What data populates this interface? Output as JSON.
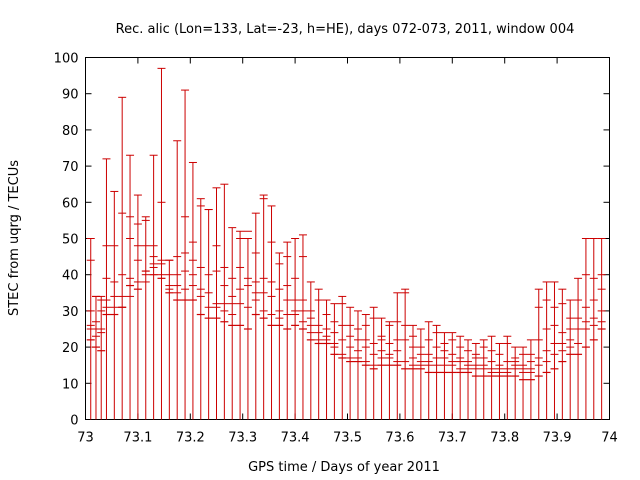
{
  "chart_data": {
    "type": "scatter",
    "style": "error-bars",
    "title": "Rec. alic (Lon=133, Lat=-23, h=HE), days 072-073, 2011, window 004",
    "xlabel": "GPS time / Days of year 2011",
    "ylabel": "STEC from uqrg / TECUs",
    "xlim": [
      73,
      74
    ],
    "ylim": [
      0,
      100
    ],
    "x_ticks": [
      "73",
      "73.1",
      "73.2",
      "73.3",
      "73.4",
      "73.5",
      "73.6",
      "73.7",
      "73.8",
      "73.9",
      "74"
    ],
    "y_ticks": [
      "0",
      "10",
      "20",
      "30",
      "40",
      "50",
      "60",
      "70",
      "80",
      "90",
      "100"
    ],
    "grid": false,
    "legend": "none",
    "color": "#cc0000",
    "series": [
      {
        "x": [
          73.01,
          73.02,
          73.03,
          73.04,
          73.055,
          73.07,
          73.085,
          73.1,
          73.115,
          73.13,
          73.145,
          73.16,
          73.175,
          73.19,
          73.205,
          73.22,
          73.235,
          73.25,
          73.265,
          73.28,
          73.295,
          73.31,
          73.325,
          73.34,
          73.355,
          73.37,
          73.385,
          73.4,
          73.415,
          73.43,
          73.445,
          73.46,
          73.475,
          73.49,
          73.505,
          73.52,
          73.535,
          73.55,
          73.565,
          73.58,
          73.595,
          73.61,
          73.625,
          73.64,
          73.655,
          73.67,
          73.685,
          73.7,
          73.715,
          73.73,
          73.745,
          73.76,
          73.775,
          73.79,
          73.805,
          73.82,
          73.835,
          73.85,
          73.865,
          73.88,
          73.895,
          73.91,
          73.925,
          73.94,
          73.955,
          73.97,
          73.985
        ],
        "y": [
          22,
          20,
          19,
          29,
          29,
          31,
          37,
          36,
          41,
          40,
          39,
          35,
          33,
          33,
          33,
          29,
          28,
          28,
          27,
          26,
          26,
          25,
          29,
          28,
          26,
          26,
          25,
          26,
          25,
          22,
          21,
          21,
          18,
          17,
          16,
          16,
          15,
          14,
          15,
          15,
          15,
          14,
          14,
          14,
          13,
          13,
          13,
          13,
          13,
          13,
          12,
          12,
          12,
          12,
          12,
          12,
          11,
          11,
          12,
          13,
          14,
          16,
          18,
          18,
          20,
          22,
          25
        ],
        "err_low": [
          0,
          0,
          0,
          0,
          0,
          0,
          0,
          0,
          0,
          0,
          0,
          0,
          0,
          0,
          0,
          0,
          0,
          0,
          0,
          0,
          0,
          0,
          0,
          0,
          0,
          0,
          0,
          0,
          0,
          0,
          0,
          0,
          0,
          0,
          0,
          0,
          0,
          0,
          0,
          0,
          0,
          0,
          0,
          0,
          0,
          0,
          0,
          0,
          0,
          0,
          0,
          0,
          0,
          0,
          0,
          0,
          0,
          0,
          0,
          0,
          0,
          0,
          0,
          0,
          0,
          0,
          0
        ],
        "err_high": [
          50,
          34,
          34,
          72,
          63,
          89,
          73,
          62,
          56,
          73,
          97,
          44,
          77,
          91,
          71,
          61,
          58,
          64,
          65,
          53,
          52,
          50,
          57,
          62,
          59,
          46,
          49,
          50,
          51,
          38,
          36,
          33,
          32,
          34,
          31,
          30,
          29,
          31,
          28,
          27,
          35,
          36,
          26,
          25,
          27,
          26,
          24,
          24,
          23,
          22,
          21,
          22,
          23,
          21,
          23,
          20,
          20,
          22,
          36,
          38,
          38,
          36,
          33,
          39,
          50,
          50,
          50
        ],
        "inner_ticks": [
          [
            30,
            44,
            26,
            25
          ],
          [
            27,
            34,
            25,
            23
          ],
          [
            25,
            33,
            30,
            24
          ],
          [
            48,
            39,
            33,
            31
          ],
          [
            48,
            34,
            38,
            31
          ],
          [
            57,
            40,
            31,
            34
          ],
          [
            56,
            50,
            39,
            34
          ],
          [
            48,
            54,
            44,
            38
          ],
          [
            55,
            48,
            40,
            38
          ],
          [
            48,
            43,
            45,
            42
          ],
          [
            60,
            44,
            43,
            40
          ],
          [
            44,
            40,
            37,
            36
          ],
          [
            45,
            40,
            37,
            35
          ],
          [
            56,
            46,
            41,
            36
          ],
          [
            49,
            44,
            40,
            37
          ],
          [
            59,
            42,
            36,
            34
          ],
          [
            58,
            40,
            35,
            31
          ],
          [
            48,
            41,
            32,
            31
          ],
          [
            42,
            37,
            32,
            30
          ],
          [
            39,
            34,
            32,
            29
          ],
          [
            50,
            42,
            36,
            32
          ],
          [
            52,
            39,
            37,
            31
          ],
          [
            46,
            38,
            35,
            33
          ],
          [
            61,
            39,
            35,
            30
          ],
          [
            49,
            38,
            34,
            29
          ],
          [
            43,
            36,
            30,
            28
          ],
          [
            45,
            37,
            33,
            29
          ],
          [
            39,
            33,
            30,
            29
          ],
          [
            45,
            33,
            30,
            27
          ],
          [
            30,
            28,
            26,
            24
          ],
          [
            33,
            26,
            24,
            22
          ],
          [
            29,
            25,
            23,
            22
          ],
          [
            27,
            24,
            21,
            20
          ],
          [
            32,
            26,
            22,
            18
          ],
          [
            26,
            23,
            20,
            17
          ],
          [
            25,
            22,
            19,
            17
          ],
          [
            26,
            22,
            20,
            16
          ],
          [
            28,
            21,
            18,
            15
          ],
          [
            23,
            22,
            19,
            17
          ],
          [
            26,
            21,
            18,
            17
          ],
          [
            27,
            22,
            19,
            16
          ],
          [
            35,
            26,
            22,
            16
          ],
          [
            23,
            20,
            17,
            15
          ],
          [
            20,
            18,
            16,
            15
          ],
          [
            22,
            18,
            16,
            15
          ],
          [
            24,
            20,
            17,
            15
          ],
          [
            21,
            19,
            17,
            15
          ],
          [
            22,
            18,
            16,
            15
          ],
          [
            20,
            17,
            16,
            14
          ],
          [
            19,
            16,
            15,
            14
          ],
          [
            18,
            17,
            15,
            14
          ],
          [
            20,
            17,
            15,
            14
          ],
          [
            19,
            16,
            14,
            13
          ],
          [
            18,
            15,
            14,
            13
          ],
          [
            21,
            16,
            14,
            13
          ],
          [
            17,
            16,
            15,
            14
          ],
          [
            18,
            15,
            14,
            13
          ],
          [
            18,
            16,
            14,
            13
          ],
          [
            31,
            22,
            17,
            15
          ],
          [
            33,
            25,
            19,
            16
          ],
          [
            31,
            26,
            21,
            18
          ],
          [
            32,
            24,
            21,
            19
          ],
          [
            28,
            25,
            22,
            20
          ],
          [
            33,
            28,
            25,
            21
          ],
          [
            40,
            31,
            27,
            25
          ],
          [
            39,
            33,
            28,
            26
          ],
          [
            40,
            36,
            30,
            27
          ]
        ]
      }
    ]
  }
}
